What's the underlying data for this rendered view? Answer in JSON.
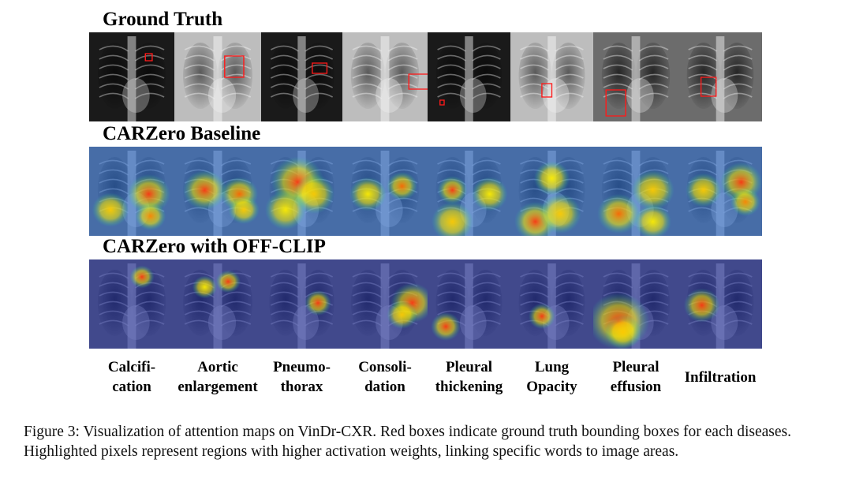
{
  "rows": [
    {
      "title": "Ground Truth",
      "kind": "xray"
    },
    {
      "title": "CARZero Baseline",
      "kind": "heat"
    },
    {
      "title": "CARZero with OFF-CLIP",
      "kind": "heat"
    }
  ],
  "diseases": [
    {
      "lines": [
        "Calcifi-",
        "cation"
      ],
      "tone": "dark"
    },
    {
      "lines": [
        "Aortic",
        "enlargement"
      ],
      "tone": "light"
    },
    {
      "lines": [
        "Pneumo-",
        "thorax"
      ],
      "tone": "dark"
    },
    {
      "lines": [
        "Consoli-",
        "dation"
      ],
      "tone": "light"
    },
    {
      "lines": [
        "Pleural",
        "thickening"
      ],
      "tone": "dark"
    },
    {
      "lines": [
        "Lung",
        "Opacity"
      ],
      "tone": "light"
    },
    {
      "lines": [
        "Pleural",
        "effusion"
      ],
      "tone": "mid"
    },
    {
      "lines": [
        "Infiltration"
      ],
      "tone": "mid"
    }
  ],
  "caption": "Figure 3: Visualization of attention maps on VinDr-CXR. Red boxes indicate ground truth bounding boxes for each diseases. Highlighted pixels represent regions with higher activation weights, linking specific words to image areas."
}
